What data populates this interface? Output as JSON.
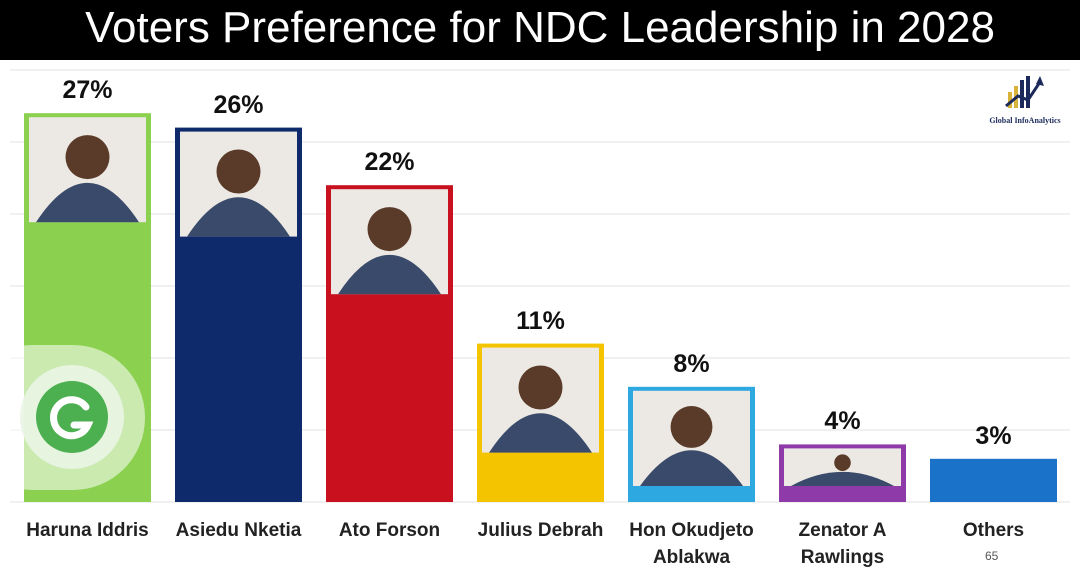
{
  "title": "Voters Preference for NDC Leadership in 2028",
  "watermark": {
    "brand": "Global InfoAnalytics",
    "page_number": "65"
  },
  "colors": {
    "title_bg": "#000000",
    "grid": "#e2e2e2",
    "badge": "#4caf50"
  },
  "chart_data": {
    "type": "bar",
    "title": "Voters Preference for NDC Leadership in 2028",
    "xlabel": "",
    "ylabel": "",
    "ylim": [
      0,
      30
    ],
    "grid": true,
    "unit": "%",
    "categories": [
      "Haruna Iddris",
      "Asiedu Nketia",
      "Ato Forson",
      "Julius Debrah",
      "Hon Okudjeto Ablakwa",
      "Zenator A Rawlings",
      "Others"
    ],
    "category_lines": [
      [
        "Haruna Iddris"
      ],
      [
        "Asiedu Nketia"
      ],
      [
        "Ato Forson"
      ],
      [
        "Julius Debrah"
      ],
      [
        "Hon Okudjeto",
        "Ablakwa"
      ],
      [
        "Zenator A",
        "Rawlings"
      ],
      [
        "Others"
      ]
    ],
    "values": [
      27,
      26,
      22,
      11,
      8,
      4,
      3
    ],
    "value_labels": [
      "27%",
      "26%",
      "22%",
      "11%",
      "8%",
      "4%",
      "3%"
    ],
    "bar_colors": [
      "#8bd14f",
      "#0e2a6b",
      "#c8101f",
      "#f5c400",
      "#2ea8e0",
      "#8e3aa8",
      "#1a73c8"
    ],
    "has_photo": [
      true,
      true,
      true,
      true,
      true,
      true,
      false
    ]
  }
}
